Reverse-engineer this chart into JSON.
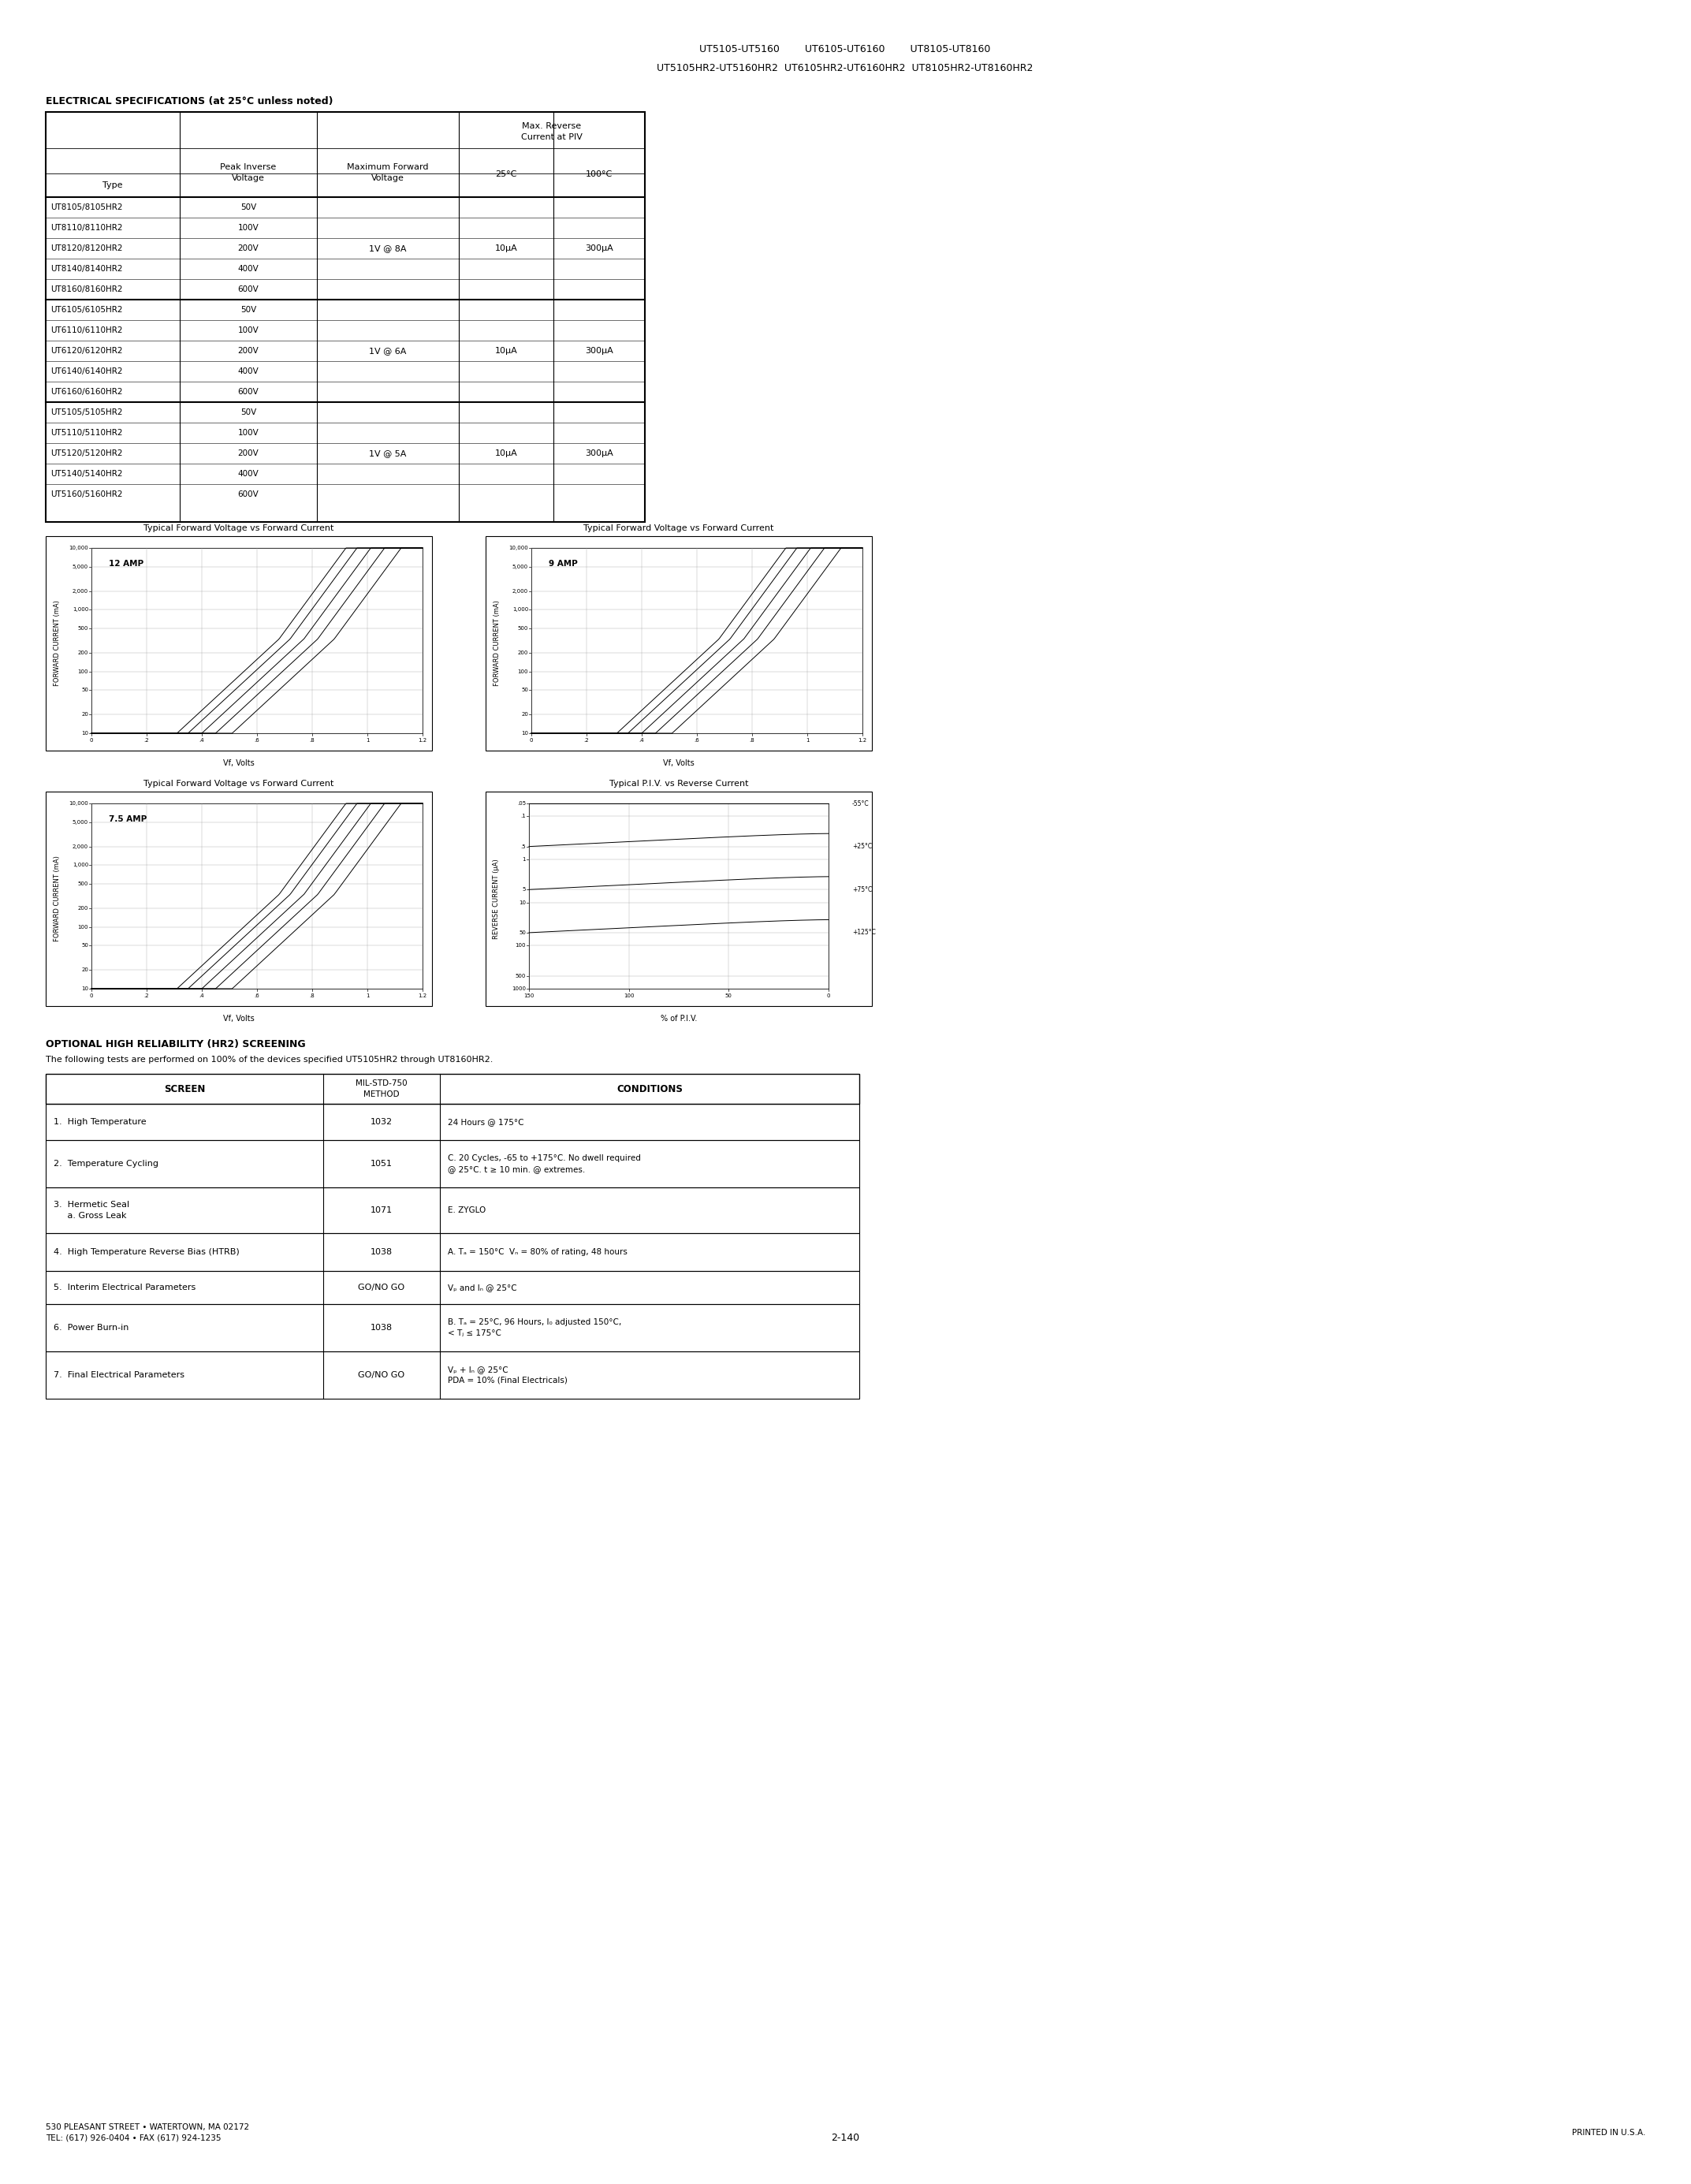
{
  "page_title_line1": "UT5105-UT5160        UT6105-UT6160        UT8105-UT8160",
  "page_title_line2": "UT5105HR2-UT5160HR2  UT6105HR2-UT6160HR2  UT8105HR2-UT8160HR2",
  "section1_title": "ELECTRICAL SPECIFICATIONS (at 25°C unless noted)",
  "table1_subheader": "Max. Reverse\nCurrent at PIV",
  "group1": {
    "rows": [
      "UT8105/8105HR2",
      "UT8110/8110HR2",
      "UT8120/8120HR2",
      "UT8140/8140HR2",
      "UT8160/8160HR2"
    ],
    "volts": [
      "50V",
      "100V",
      "200V",
      "400V",
      "600V"
    ],
    "fwd": "1V @ 8A",
    "rev25": "10μA",
    "rev100": "300μA"
  },
  "group2": {
    "rows": [
      "UT6105/6105HR2",
      "UT6110/6110HR2",
      "UT6120/6120HR2",
      "UT6140/6140HR2",
      "UT6160/6160HR2"
    ],
    "volts": [
      "50V",
      "100V",
      "200V",
      "400V",
      "600V"
    ],
    "fwd": "1V @ 6A",
    "rev25": "10μA",
    "rev100": "300μA"
  },
  "group3": {
    "rows": [
      "UT5105/5105HR2",
      "UT5110/5110HR2",
      "UT5120/5120HR2",
      "UT5140/5140HR2",
      "UT5160/5160HR2"
    ],
    "volts": [
      "50V",
      "100V",
      "200V",
      "400V",
      "600V"
    ],
    "fwd": "1V @ 5A",
    "rev25": "10μA",
    "rev100": "300μA"
  },
  "graph1_title": "Typical Forward Voltage vs Forward Current",
  "graph1_amp": "12 AMP",
  "graph2_title": "Typical Forward Voltage vs Forward Current",
  "graph2_amp": "9 AMP",
  "graph3_title": "Typical Forward Voltage vs Forward Current",
  "graph3_amp": "7.5 AMP",
  "graph4_title": "Typical P.I.V. vs Reverse Current",
  "section2_title": "OPTIONAL HIGH RELIABILITY (HR2) SCREENING",
  "section2_subtitle": "The following tests are performed on 100% of the devices specified UT5105HR2 through UT8160HR2.",
  "table2_col_headers": [
    "SCREEN",
    "MIL-STD-750\nMETHOD",
    "CONDITIONS"
  ],
  "table2_rows": [
    [
      "1.  High Temperature",
      "1032",
      "24 Hours @ 175°C"
    ],
    [
      "2.  Temperature Cycling",
      "1051",
      "C. 20 Cycles, -65 to +175°C. No dwell required\n@ 25°C. t ≥ 10 min. @ extremes."
    ],
    [
      "3.  Hermetic Seal\n     a. Gross Leak",
      "1071",
      "E. ZYGLO"
    ],
    [
      "4.  High Temperature Reverse Bias (HTRB)",
      "1038",
      "A. Tₐ = 150°C  Vₙ = 80% of rating, 48 hours"
    ],
    [
      "5.  Interim Electrical Parameters",
      "GO/NO GO",
      "Vₚ and Iₙ @ 25°C"
    ],
    [
      "6.  Power Burn-in",
      "1038",
      "B. Tₐ = 25°C, 96 Hours, I₀ adjusted 150°C,\n< Tⱼ ≤ 175°C"
    ],
    [
      "7.  Final Electrical Parameters",
      "GO/NO GO",
      "Vₚ + Iₙ @ 25°C\nPDA = 10% (Final Electricals)"
    ]
  ],
  "footer_left": "530 PLEASANT STREET • WATERTOWN, MA 02172\nTEL: (617) 926-0404 • FAX (617) 924-1235",
  "footer_center": "2-140",
  "footer_right": "PRINTED IN U.S.A.",
  "bg_color": "#ffffff"
}
